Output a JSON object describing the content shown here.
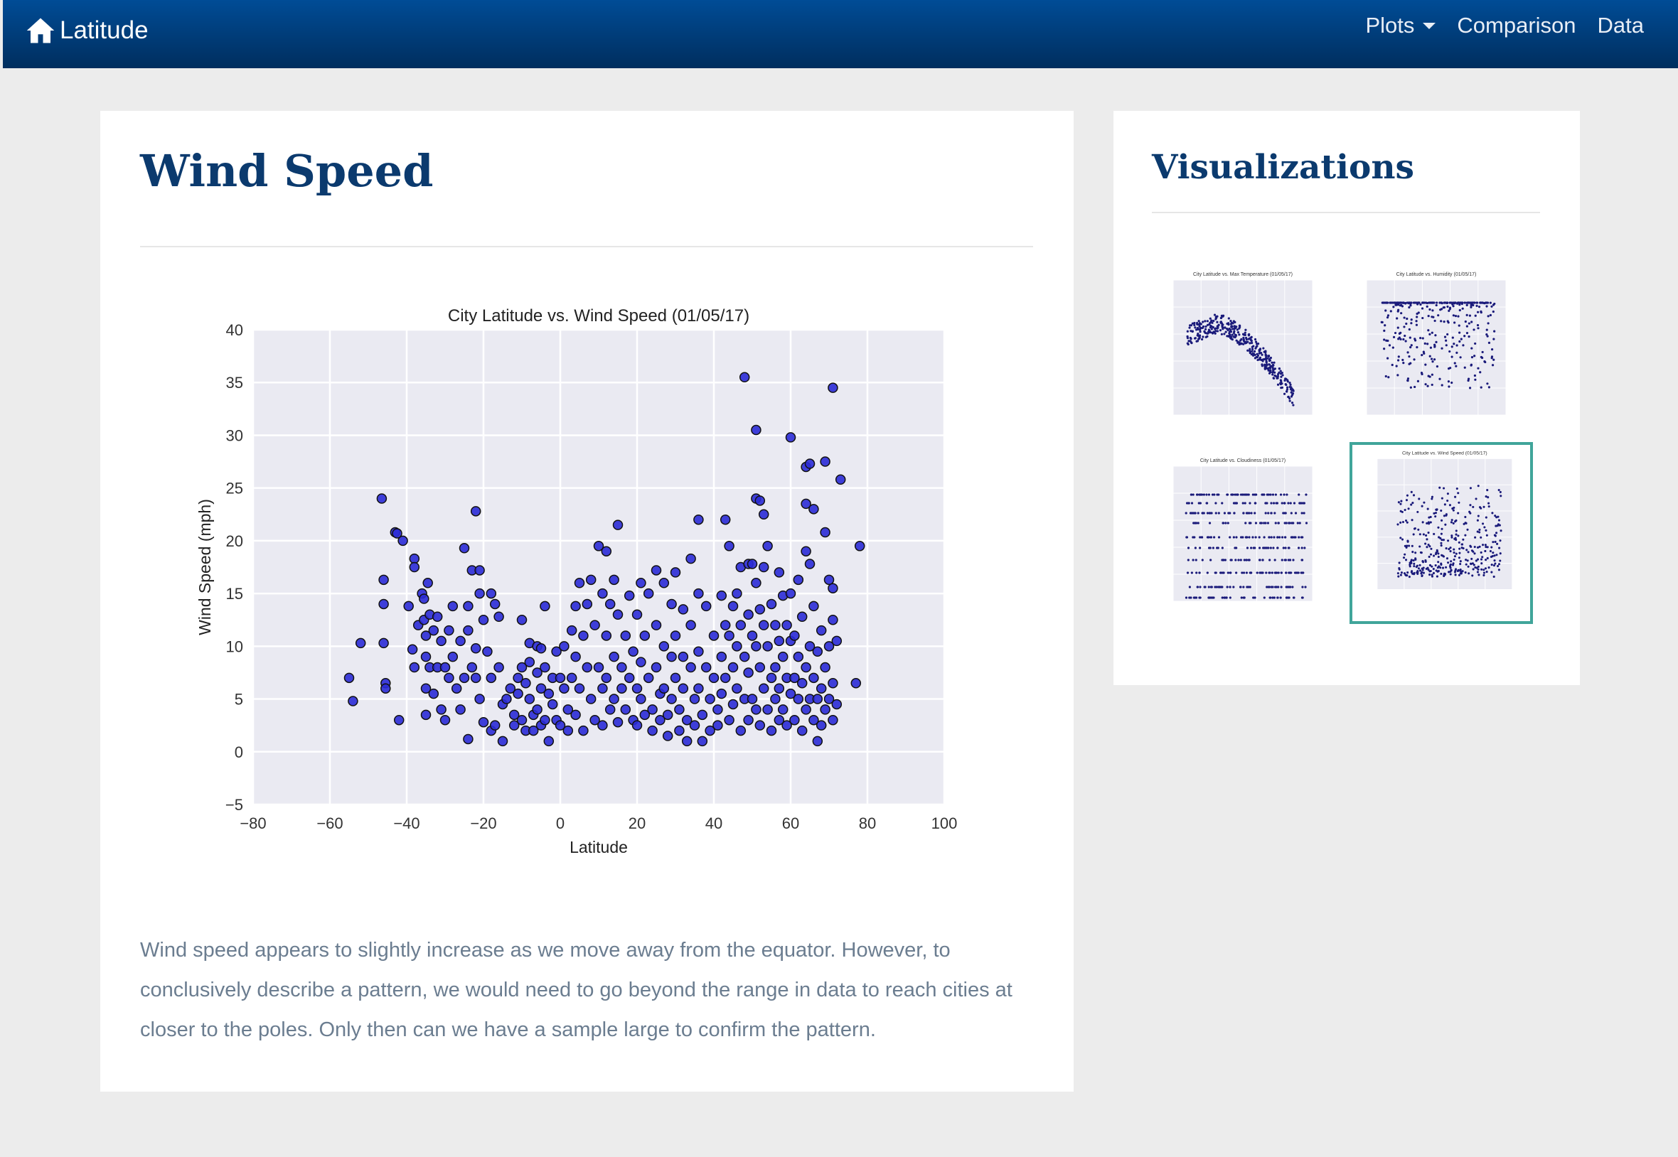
{
  "nav": {
    "brand": "Latitude",
    "links": [
      "Plots",
      "Comparison",
      "Data"
    ]
  },
  "main": {
    "title": "Wind Speed",
    "description": "Wind speed appears to slightly increase as we move away from the equator. However, to conclusively describe a pattern, we would need to go beyond the range in data to reach cities at closer to the poles. Only then can we have a sample large to confirm the pattern."
  },
  "sidebar": {
    "title": "Visualizations",
    "thumbnails": [
      {
        "label": "City Latitude vs. Max Temperature (01/05/17)"
      },
      {
        "label": "City Latitude vs. Humidity (01/05/17)"
      },
      {
        "label": "City Latitude vs. Cloudiness (01/05/17)"
      },
      {
        "label": "City Latitude vs. Wind Speed (01/05/17)"
      }
    ]
  },
  "colors": {
    "accent": "#0b3a6e",
    "point": "#2b2bd6",
    "plot_bg": "#eaeaf2",
    "selected_border": "#40a59a"
  },
  "chart_data": {
    "type": "scatter",
    "title": "City Latitude vs. Wind Speed (01/05/17)",
    "xlabel": "Latitude",
    "ylabel": "Wind Speed (mph)",
    "xlim": [
      -80,
      100
    ],
    "ylim": [
      -5,
      40
    ],
    "xticks": [
      "−80",
      "−60",
      "−40",
      "−20",
      "0",
      "20",
      "40",
      "60",
      "80",
      "100"
    ],
    "yticks": [
      "−5",
      "0",
      "5",
      "10",
      "15",
      "20",
      "25",
      "30",
      "35",
      "40"
    ],
    "grid": true,
    "points": [
      [
        -55,
        7
      ],
      [
        -54,
        4.8
      ],
      [
        -52,
        10.3
      ],
      [
        -46.5,
        24
      ],
      [
        -46,
        16.3
      ],
      [
        -46,
        14
      ],
      [
        -46,
        10.3
      ],
      [
        -45.5,
        6.5
      ],
      [
        -45.5,
        6
      ],
      [
        -43,
        20.8
      ],
      [
        -42.5,
        20.7
      ],
      [
        -42,
        3
      ],
      [
        -41,
        20
      ],
      [
        -39.5,
        13.8
      ],
      [
        -38.5,
        9.7
      ],
      [
        -38,
        18.3
      ],
      [
        -38,
        17.5
      ],
      [
        -38,
        8
      ],
      [
        -37,
        12
      ],
      [
        -36,
        15
      ],
      [
        -35.5,
        14.5
      ],
      [
        -35.5,
        12.5
      ],
      [
        -35,
        11
      ],
      [
        -35,
        9
      ],
      [
        -35,
        6
      ],
      [
        -35,
        3.5
      ],
      [
        -34.5,
        16
      ],
      [
        -34,
        13
      ],
      [
        -34,
        8
      ],
      [
        -33,
        11.5
      ],
      [
        -33,
        5.5
      ],
      [
        -32,
        12.8
      ],
      [
        -32,
        8
      ],
      [
        -31,
        10.5
      ],
      [
        -31,
        4
      ],
      [
        -30,
        8
      ],
      [
        -30,
        3
      ],
      [
        -29,
        11.5
      ],
      [
        -29,
        7
      ],
      [
        -28,
        13.8
      ],
      [
        -28,
        9
      ],
      [
        -27,
        6
      ],
      [
        -26,
        10.5
      ],
      [
        -26,
        4
      ],
      [
        -25,
        19.3
      ],
      [
        -25,
        7
      ],
      [
        -24,
        13.8
      ],
      [
        -24,
        11.5
      ],
      [
        -24,
        1.2
      ],
      [
        -23,
        17.2
      ],
      [
        -23,
        8
      ],
      [
        -22,
        22.8
      ],
      [
        -22,
        9.8
      ],
      [
        -22,
        7
      ],
      [
        -21,
        17.2
      ],
      [
        -21,
        15
      ],
      [
        -21,
        5
      ],
      [
        -20,
        12.5
      ],
      [
        -20,
        2.8
      ],
      [
        -19,
        9.5
      ],
      [
        -18,
        15
      ],
      [
        -18,
        7
      ],
      [
        -18,
        2
      ],
      [
        -17,
        14
      ],
      [
        -17,
        2.5
      ],
      [
        -16,
        12.8
      ],
      [
        -16,
        8
      ],
      [
        -15,
        4.5
      ],
      [
        -15,
        1
      ],
      [
        -14,
        5
      ],
      [
        -13,
        6
      ],
      [
        -12,
        3.5
      ],
      [
        -12,
        2.5
      ],
      [
        -11,
        7
      ],
      [
        -11,
        5.5
      ],
      [
        -10,
        12.5
      ],
      [
        -10,
        8
      ],
      [
        -10,
        3
      ],
      [
        -9,
        6.5
      ],
      [
        -9,
        2
      ],
      [
        -8,
        10.3
      ],
      [
        -8,
        8.5
      ],
      [
        -8,
        5
      ],
      [
        -7,
        3.5
      ],
      [
        -7,
        2
      ],
      [
        -6,
        10
      ],
      [
        -6,
        7.5
      ],
      [
        -6,
        4
      ],
      [
        -5,
        9.8
      ],
      [
        -5,
        6
      ],
      [
        -5,
        2.5
      ],
      [
        -4,
        13.8
      ],
      [
        -4,
        8
      ],
      [
        -4,
        3
      ],
      [
        -3,
        1
      ],
      [
        -3,
        5.5
      ],
      [
        -2,
        7
      ],
      [
        -2,
        4.5
      ],
      [
        -1,
        3
      ],
      [
        -1,
        9.5
      ],
      [
        0,
        7
      ],
      [
        0,
        2.5
      ],
      [
        1,
        10
      ],
      [
        1,
        6
      ],
      [
        2,
        4
      ],
      [
        2,
        2
      ],
      [
        3,
        11.5
      ],
      [
        3,
        7
      ],
      [
        4,
        13.8
      ],
      [
        4,
        9
      ],
      [
        4,
        3.5
      ],
      [
        5,
        16
      ],
      [
        5,
        6
      ],
      [
        6,
        2
      ],
      [
        6,
        11
      ],
      [
        7,
        14
      ],
      [
        7,
        8
      ],
      [
        8,
        5
      ],
      [
        8,
        16.3
      ],
      [
        9,
        12
      ],
      [
        9,
        3
      ],
      [
        10,
        19.5
      ],
      [
        10,
        8
      ],
      [
        11,
        15
      ],
      [
        11,
        6
      ],
      [
        11,
        2.5
      ],
      [
        12,
        19
      ],
      [
        12,
        11
      ],
      [
        12,
        7
      ],
      [
        13,
        14
      ],
      [
        13,
        4
      ],
      [
        14,
        16.3
      ],
      [
        14,
        9
      ],
      [
        14,
        5
      ],
      [
        15,
        21.5
      ],
      [
        15,
        13
      ],
      [
        15,
        2.8
      ],
      [
        16,
        8
      ],
      [
        16,
        6
      ],
      [
        17,
        11
      ],
      [
        17,
        4
      ],
      [
        18,
        14.8
      ],
      [
        18,
        7
      ],
      [
        19,
        3
      ],
      [
        19,
        9.5
      ],
      [
        20,
        13
      ],
      [
        20,
        6
      ],
      [
        20,
        2.5
      ],
      [
        21,
        16
      ],
      [
        21,
        8.5
      ],
      [
        21,
        5
      ],
      [
        22,
        11
      ],
      [
        22,
        3.5
      ],
      [
        23,
        15
      ],
      [
        23,
        7
      ],
      [
        24,
        4
      ],
      [
        24,
        2
      ],
      [
        25,
        17.2
      ],
      [
        25,
        12
      ],
      [
        25,
        8
      ],
      [
        26,
        5.5
      ],
      [
        26,
        3
      ],
      [
        27,
        16
      ],
      [
        27,
        10
      ],
      [
        27,
        6
      ],
      [
        28,
        3.5
      ],
      [
        28,
        1.5
      ],
      [
        29,
        14
      ],
      [
        29,
        9
      ],
      [
        29,
        5
      ],
      [
        30,
        17
      ],
      [
        30,
        11
      ],
      [
        30,
        7
      ],
      [
        31,
        4
      ],
      [
        31,
        2
      ],
      [
        32,
        13.5
      ],
      [
        32,
        9
      ],
      [
        32,
        6
      ],
      [
        33,
        3
      ],
      [
        33,
        1
      ],
      [
        34,
        18.3
      ],
      [
        34,
        12
      ],
      [
        34,
        8
      ],
      [
        35,
        5
      ],
      [
        35,
        2.5
      ],
      [
        36,
        22
      ],
      [
        36,
        15
      ],
      [
        36,
        9.5
      ],
      [
        36,
        6
      ],
      [
        37,
        3.5
      ],
      [
        37,
        1
      ],
      [
        38,
        13.8
      ],
      [
        38,
        8
      ],
      [
        39,
        5
      ],
      [
        39,
        2
      ],
      [
        40,
        11
      ],
      [
        40,
        7
      ],
      [
        41,
        4
      ],
      [
        41,
        2.5
      ],
      [
        42,
        14.8
      ],
      [
        42,
        9
      ],
      [
        42,
        5.5
      ],
      [
        43,
        22
      ],
      [
        43,
        12
      ],
      [
        43,
        7
      ],
      [
        44,
        19.5
      ],
      [
        44,
        11
      ],
      [
        44,
        3
      ],
      [
        45,
        13.8
      ],
      [
        45,
        8
      ],
      [
        45,
        4.5
      ],
      [
        46,
        15
      ],
      [
        46,
        10
      ],
      [
        46,
        6
      ],
      [
        47,
        17.5
      ],
      [
        47,
        12
      ],
      [
        47,
        2
      ],
      [
        48,
        35.5
      ],
      [
        48,
        9
      ],
      [
        48,
        5
      ],
      [
        49,
        17.8
      ],
      [
        49,
        13
      ],
      [
        49,
        7.5
      ],
      [
        49,
        3
      ],
      [
        50,
        17.8
      ],
      [
        50,
        11
      ],
      [
        50,
        5
      ],
      [
        51,
        30.5
      ],
      [
        51,
        24
      ],
      [
        51,
        16
      ],
      [
        51,
        10
      ],
      [
        51,
        4
      ],
      [
        52,
        23.8
      ],
      [
        52,
        13.5
      ],
      [
        52,
        8
      ],
      [
        52,
        2.5
      ],
      [
        53,
        22.5
      ],
      [
        53,
        17.5
      ],
      [
        53,
        12
      ],
      [
        53,
        6
      ],
      [
        54,
        19.5
      ],
      [
        54,
        10
      ],
      [
        54,
        4
      ],
      [
        55,
        14
      ],
      [
        55,
        7
      ],
      [
        55,
        2
      ],
      [
        56,
        12
      ],
      [
        56,
        8
      ],
      [
        56,
        5
      ],
      [
        57,
        17
      ],
      [
        57,
        10.5
      ],
      [
        57,
        6
      ],
      [
        57,
        3
      ],
      [
        58,
        14.8
      ],
      [
        58,
        9
      ],
      [
        58,
        4
      ],
      [
        59,
        12
      ],
      [
        59,
        7
      ],
      [
        59,
        2.5
      ],
      [
        60,
        29.8
      ],
      [
        60,
        15
      ],
      [
        60,
        10.5
      ],
      [
        60,
        5.5
      ],
      [
        61,
        11
      ],
      [
        61,
        7
      ],
      [
        61,
        3
      ],
      [
        62,
        16.3
      ],
      [
        62,
        9
      ],
      [
        62,
        5
      ],
      [
        63,
        12.8
      ],
      [
        63,
        6.5
      ],
      [
        63,
        2
      ],
      [
        64,
        27
      ],
      [
        64,
        23.5
      ],
      [
        64,
        19
      ],
      [
        64,
        8
      ],
      [
        64,
        4
      ],
      [
        65,
        27.3
      ],
      [
        65,
        17.8
      ],
      [
        65,
        10
      ],
      [
        65,
        5
      ],
      [
        66,
        23
      ],
      [
        66,
        13.8
      ],
      [
        66,
        7
      ],
      [
        66,
        3
      ],
      [
        67,
        9.5
      ],
      [
        67,
        5
      ],
      [
        67,
        1
      ],
      [
        68,
        11.5
      ],
      [
        68,
        6
      ],
      [
        68,
        2.5
      ],
      [
        69,
        27.5
      ],
      [
        69,
        20.8
      ],
      [
        69,
        8
      ],
      [
        69,
        4
      ],
      [
        70,
        16.3
      ],
      [
        70,
        10
      ],
      [
        70,
        5
      ],
      [
        71,
        34.5
      ],
      [
        71,
        15.5
      ],
      [
        71,
        12.5
      ],
      [
        71,
        6.5
      ],
      [
        71,
        3
      ],
      [
        72,
        10.5
      ],
      [
        72,
        4.5
      ],
      [
        73,
        25.8
      ],
      [
        77,
        6.5
      ],
      [
        78,
        19.5
      ]
    ]
  }
}
